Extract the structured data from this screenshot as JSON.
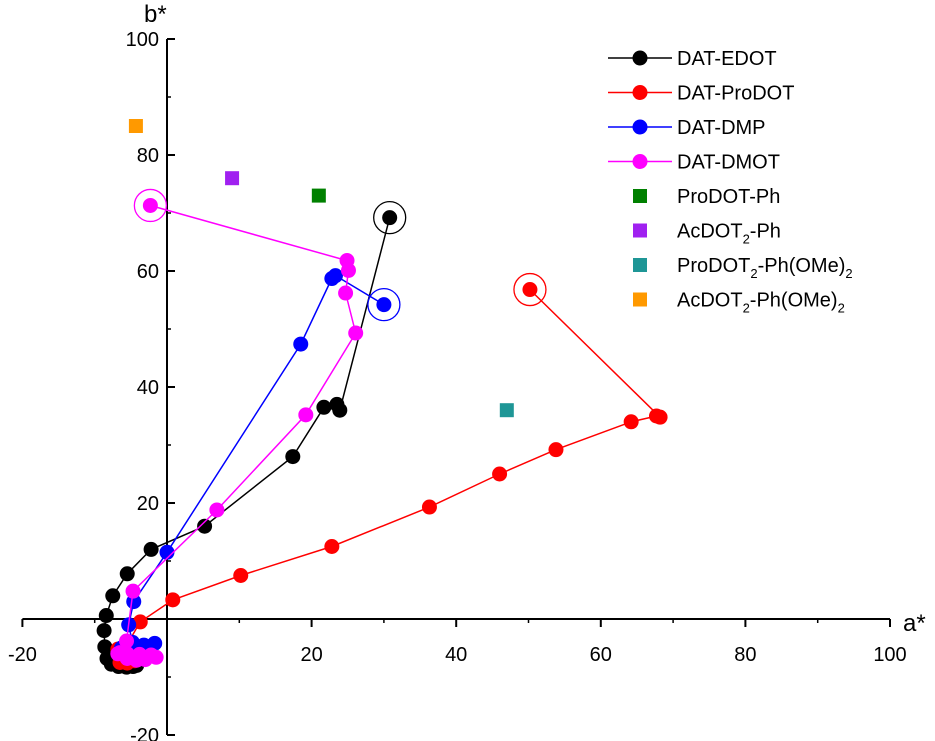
{
  "chart_data": {
    "type": "scatter",
    "title": "",
    "xlabel": "a*",
    "ylabel": "b*",
    "xlim": [
      -20,
      100
    ],
    "ylim": [
      -20,
      100
    ],
    "xticks": [
      -20,
      0,
      20,
      40,
      60,
      80,
      100
    ],
    "yticks": [
      -20,
      0,
      20,
      40,
      60,
      80,
      100
    ],
    "xtick_labels": [
      "-20",
      "",
      "20",
      "40",
      "60",
      "80",
      "100"
    ],
    "ytick_labels": [
      "-20",
      "",
      "20",
      "40",
      "60",
      "80",
      "100"
    ],
    "grid": false,
    "legend_position": "top-right",
    "series": [
      {
        "name": "DAT-EDOT",
        "color": "#000000",
        "marker": "circle",
        "line": true,
        "points": [
          [
            30.8,
            69.2
          ],
          [
            23.9,
            36
          ],
          [
            23.5,
            37
          ],
          [
            21.7,
            36.5
          ],
          [
            17.4,
            28
          ],
          [
            5.2,
            16
          ],
          [
            -2.2,
            12
          ],
          [
            -5.5,
            7.8
          ],
          [
            -7.5,
            4
          ],
          [
            -8.4,
            0.6
          ],
          [
            -8.7,
            -2
          ],
          [
            -8.6,
            -4.8
          ],
          [
            -8.3,
            -6.8
          ],
          [
            -7.7,
            -7.8
          ],
          [
            -6.7,
            -8.2
          ],
          [
            -5.6,
            -8.3
          ],
          [
            -4.7,
            -8.2
          ],
          [
            -4.2,
            -8
          ]
        ],
        "circled": [
          30.8,
          69.2
        ]
      },
      {
        "name": "DAT-ProDOT",
        "color": "#ff0000",
        "marker": "circle",
        "line": true,
        "points": [
          [
            50.2,
            56.8
          ],
          [
            68.2,
            34.8
          ],
          [
            67.7,
            35
          ],
          [
            64.2,
            34
          ],
          [
            53.8,
            29.2
          ],
          [
            46,
            25
          ],
          [
            36.3,
            19.3
          ],
          [
            22.8,
            12.5
          ],
          [
            10.2,
            7.5
          ],
          [
            0.8,
            3.3
          ],
          [
            -3.7,
            -0.5
          ],
          [
            -5.7,
            -4.8
          ],
          [
            -6.3,
            -6.5
          ],
          [
            -6.5,
            -7.5
          ],
          [
            -5.5,
            -7.6
          ],
          [
            -4.5,
            -7.2
          ],
          [
            -3.8,
            -6.8
          ],
          [
            -4.8,
            -5.8
          ],
          [
            -6.8,
            -5.2
          ]
        ],
        "circled": [
          50.2,
          56.8
        ]
      },
      {
        "name": "DAT-DMP",
        "color": "#0000ff",
        "marker": "circle",
        "line": true,
        "points": [
          [
            30,
            54.2
          ],
          [
            23.3,
            59.2
          ],
          [
            22.8,
            58.7
          ],
          [
            18.5,
            47.4
          ],
          [
            0,
            11.5
          ],
          [
            -4.6,
            3
          ],
          [
            -5.3,
            -1
          ],
          [
            -4.8,
            -4
          ],
          [
            -3.2,
            -4.5
          ],
          [
            -1.7,
            -4.2
          ],
          [
            -2.5,
            -5.5
          ],
          [
            -4,
            -6.5
          ],
          [
            -5.5,
            -5.5
          ],
          [
            -6.3,
            -5
          ]
        ],
        "circled": [
          30,
          54.2
        ]
      },
      {
        "name": "DAT-DMOT",
        "color": "#ff00ff",
        "marker": "circle",
        "line": true,
        "points": [
          [
            -2.3,
            71.3
          ],
          [
            24.9,
            61.8
          ],
          [
            25.1,
            60.1
          ],
          [
            24.7,
            56.2
          ],
          [
            26.1,
            49.3
          ],
          [
            19.2,
            35.2
          ],
          [
            6.9,
            18.8
          ],
          [
            -4.7,
            4.8
          ],
          [
            -5.6,
            -3.8
          ],
          [
            -6.5,
            -5.8
          ],
          [
            -5.5,
            -6.8
          ],
          [
            -4.2,
            -7.1
          ],
          [
            -3,
            -7
          ],
          [
            -1.5,
            -6.6
          ],
          [
            -2.2,
            -6.2
          ],
          [
            -3.8,
            -6.1
          ],
          [
            -5.5,
            -6
          ],
          [
            -6.8,
            -6
          ]
        ],
        "circled": [
          -2.3,
          71.3
        ]
      },
      {
        "name": "ProDOT-Ph",
        "color": "#008000",
        "marker": "square",
        "line": false,
        "points": [
          [
            21,
            73
          ]
        ]
      },
      {
        "name": "AcDOT2-Ph",
        "name_base": "AcDOT",
        "name_sub": "2",
        "name_tail": "-Ph",
        "name_sub2": "",
        "name_end": "",
        "color": "#a020f0",
        "marker": "square",
        "line": false,
        "points": [
          [
            9,
            76
          ]
        ]
      },
      {
        "name": "ProDOT2-Ph(OMe)2",
        "name_base": "ProDOT",
        "name_sub": "2",
        "name_tail": "-Ph(OMe)",
        "name_sub2": "2",
        "name_end": "",
        "color": "#1e9696",
        "marker": "square",
        "line": false,
        "points": [
          [
            47,
            36
          ]
        ]
      },
      {
        "name": "AcDOT2-Ph(OMe)2",
        "name_base": "AcDOT",
        "name_sub": "2",
        "name_tail": "-Ph(OMe)",
        "name_sub2": "2",
        "name_end": "",
        "color": "#ff9900",
        "marker": "square",
        "line": false,
        "points": [
          [
            -4.3,
            85
          ]
        ]
      }
    ]
  }
}
